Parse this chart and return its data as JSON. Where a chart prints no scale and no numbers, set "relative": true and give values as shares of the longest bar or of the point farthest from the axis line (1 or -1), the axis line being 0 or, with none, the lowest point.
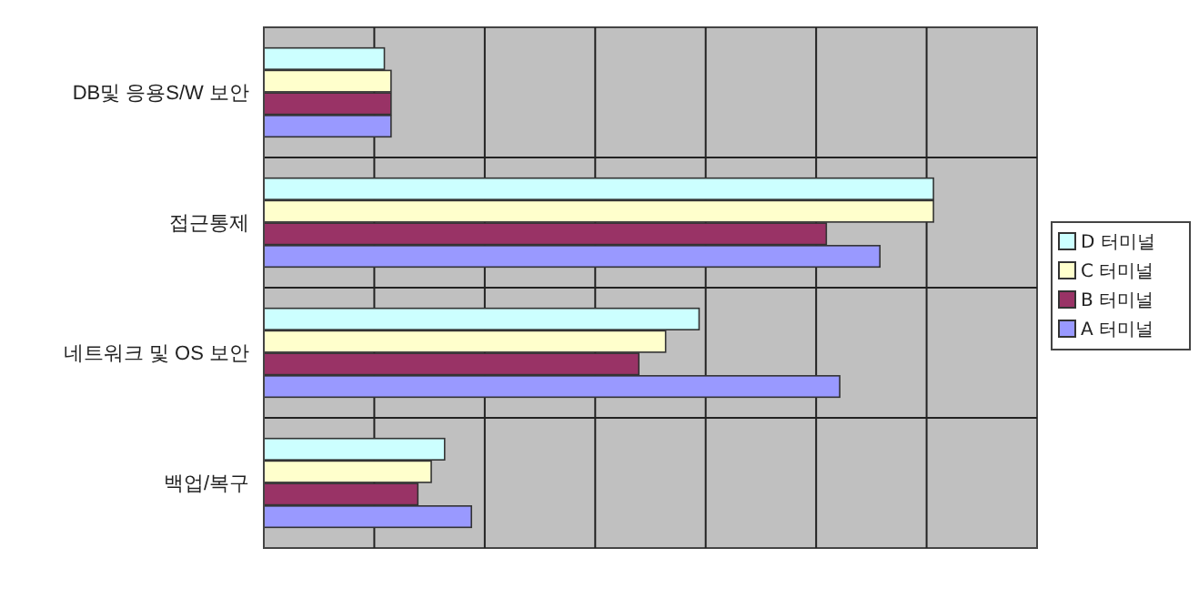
{
  "chart_data": {
    "type": "bar",
    "orientation": "horizontal",
    "relative": true,
    "grid": true,
    "legend": "right",
    "categories": [
      "DB및 응용S/W 보안",
      "접근통제",
      "네트워크 및 OS 보안",
      "백업/복구"
    ],
    "series": [
      {
        "name": "D 터미널",
        "color": "#ccffff",
        "values": [
          0.18,
          1,
          0.65,
          0.27
        ]
      },
      {
        "name": "C 터미널",
        "color": "#ffffcc",
        "values": [
          0.19,
          1,
          0.6,
          0.25
        ]
      },
      {
        "name": "B 터미널",
        "color": "#993366",
        "values": [
          0.19,
          0.84,
          0.56,
          0.23
        ]
      },
      {
        "name": "A 터미널",
        "color": "#9999ff",
        "values": [
          0.19,
          0.92,
          0.86,
          0.31
        ]
      }
    ]
  }
}
